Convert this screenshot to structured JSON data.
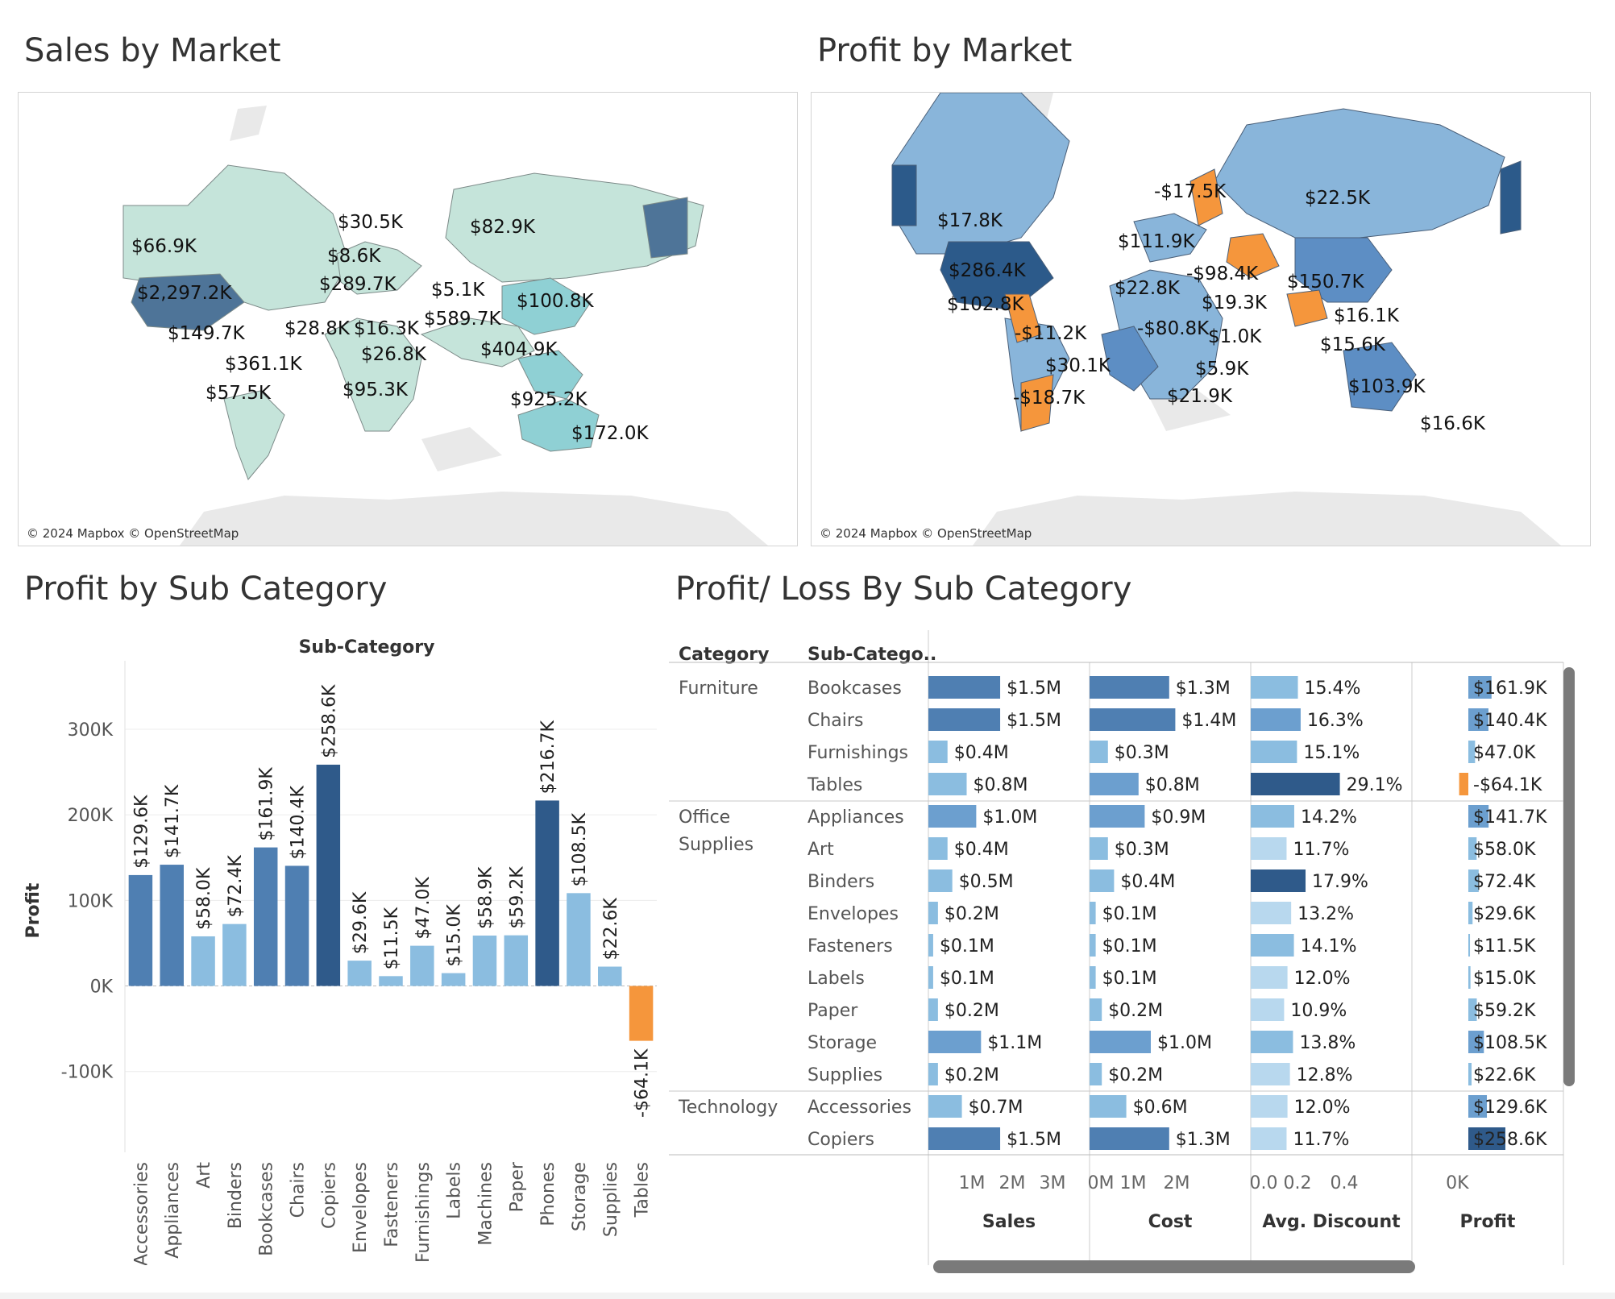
{
  "colors": {
    "map_land": "#e8e8e8",
    "sales_light": "#c5e4da",
    "sales_mid": "#8fd0d4",
    "sales_dark": "#4e7498",
    "profit_light": "#89b5da",
    "profit_mid": "#5d8ec4",
    "profit_dark": "#2c5a8a",
    "profit_neg": "#f5963c",
    "bar_very_light": "#b8d8ee",
    "bar_light": "#8bbde0",
    "bar_med": "#6c9fcf",
    "bar_dark": "#4f7fb2",
    "bar_darkest": "#2f5a8a",
    "bar_neg": "#f5963c"
  },
  "sales_map": {
    "title": "Sales by Market",
    "credit": "© 2024 Mapbox © OpenStreetMap",
    "labels": [
      "$30.5K",
      "$82.9K",
      "$66.9K",
      "$8.6K",
      "$289.7K",
      "$5.1K",
      "$2,297.2K",
      "$100.8K",
      "$589.7K",
      "$28.8K",
      "$16.3K",
      "$149.7K",
      "$26.8K",
      "$404.9K",
      "$361.1K",
      "$925.2K",
      "$57.5K",
      "$95.3K",
      "$172.0K"
    ]
  },
  "profit_map": {
    "title": "Profit by Market",
    "credit": "© 2024 Mapbox © OpenStreetMap",
    "labels": [
      "-$17.5K",
      "$22.5K",
      "$17.8K",
      "$111.9K",
      "$286.4K",
      "-$98.4K",
      "$150.7K",
      "$22.8K",
      "$19.3K",
      "$102.8K",
      "$16.1K",
      "-$80.8K",
      "$1.0K",
      "-$11.2K",
      "$15.6K",
      "$30.1K",
      "$5.9K",
      "$103.9K",
      "-$18.7K",
      "$21.9K",
      "$16.6K"
    ]
  },
  "subcat_chart": {
    "title": "Profit by Sub Category",
    "chart_data": {
      "type": "bar",
      "title": "Profit by Sub Category",
      "top_label": "Sub-Category",
      "xlabel": "",
      "ylabel": "Profit",
      "ylim": [
        -185000,
        380000
      ],
      "ticks": [
        -100000,
        0,
        100000,
        200000,
        300000
      ],
      "tick_labels": [
        "-100K",
        "0K",
        "100K",
        "200K",
        "300K"
      ],
      "categories": [
        "Accessories",
        "Appliances",
        "Art",
        "Binders",
        "Bookcases",
        "Chairs",
        "Copiers",
        "Envelopes",
        "Fasteners",
        "Furnishings",
        "Labels",
        "Machines",
        "Paper",
        "Phones",
        "Storage",
        "Supplies",
        "Tables"
      ],
      "values": [
        129600,
        141700,
        58000,
        72400,
        161900,
        140400,
        258600,
        29600,
        11500,
        47000,
        15000,
        58900,
        59200,
        216700,
        108500,
        22600,
        -64100
      ],
      "data_labels": [
        "$129.6K",
        "$141.7K",
        "$58.0K",
        "$72.4K",
        "$161.9K",
        "$140.4K",
        "$258.6K",
        "$29.6K",
        "$11.5K",
        "$47.0K",
        "$15.0K",
        "$58.9K",
        "$59.2K",
        "$216.7K",
        "$108.5K",
        "$22.6K",
        "-$64.1K"
      ]
    }
  },
  "pl_table": {
    "title": "Profit/ Loss By Sub Category",
    "headers": {
      "category": "Category",
      "subcategory": "Sub-Catego.."
    },
    "chart_data": {
      "type": "bar",
      "measures": [
        "Sales",
        "Cost",
        "Avg. Discount",
        "Profit"
      ],
      "axis_ticks": {
        "Sales": [
          "1M",
          "2M",
          "3M"
        ],
        "Cost": [
          "0M",
          "1M",
          "2M"
        ],
        "Avg. Discount": [
          "0.0",
          "0.2",
          "0.4"
        ],
        "Profit": [
          "0K"
        ]
      },
      "groups": [
        {
          "category": "Furniture",
          "rows": [
            {
              "name": "Bookcases",
              "sales": 1.5,
              "sales_label": "$1.5M",
              "cost": 1.3,
              "cost_label": "$1.3M",
              "discount": 0.154,
              "discount_label": "15.4%",
              "profit": 161900,
              "profit_label": "$161.9K"
            },
            {
              "name": "Chairs",
              "sales": 1.5,
              "sales_label": "$1.5M",
              "cost": 1.4,
              "cost_label": "$1.4M",
              "discount": 0.163,
              "discount_label": "16.3%",
              "profit": 140400,
              "profit_label": "$140.4K"
            },
            {
              "name": "Furnishings",
              "sales": 0.4,
              "sales_label": "$0.4M",
              "cost": 0.3,
              "cost_label": "$0.3M",
              "discount": 0.151,
              "discount_label": "15.1%",
              "profit": 47000,
              "profit_label": "$47.0K"
            },
            {
              "name": "Tables",
              "sales": 0.8,
              "sales_label": "$0.8M",
              "cost": 0.8,
              "cost_label": "$0.8M",
              "discount": 0.291,
              "discount_label": "29.1%",
              "profit": -64100,
              "profit_label": "-$64.1K"
            }
          ]
        },
        {
          "category": "Office Supplies",
          "rows": [
            {
              "name": "Appliances",
              "sales": 1.0,
              "sales_label": "$1.0M",
              "cost": 0.9,
              "cost_label": "$0.9M",
              "discount": 0.142,
              "discount_label": "14.2%",
              "profit": 141700,
              "profit_label": "$141.7K"
            },
            {
              "name": "Art",
              "sales": 0.4,
              "sales_label": "$0.4M",
              "cost": 0.3,
              "cost_label": "$0.3M",
              "discount": 0.117,
              "discount_label": "11.7%",
              "profit": 58000,
              "profit_label": "$58.0K"
            },
            {
              "name": "Binders",
              "sales": 0.5,
              "sales_label": "$0.5M",
              "cost": 0.4,
              "cost_label": "$0.4M",
              "discount": 0.179,
              "discount_label": "17.9%",
              "profit": 72400,
              "profit_label": "$72.4K"
            },
            {
              "name": "Envelopes",
              "sales": 0.2,
              "sales_label": "$0.2M",
              "cost": 0.1,
              "cost_label": "$0.1M",
              "discount": 0.132,
              "discount_label": "13.2%",
              "profit": 29600,
              "profit_label": "$29.6K"
            },
            {
              "name": "Fasteners",
              "sales": 0.1,
              "sales_label": "$0.1M",
              "cost": 0.1,
              "cost_label": "$0.1M",
              "discount": 0.141,
              "discount_label": "14.1%",
              "profit": 11500,
              "profit_label": "$11.5K"
            },
            {
              "name": "Labels",
              "sales": 0.1,
              "sales_label": "$0.1M",
              "cost": 0.1,
              "cost_label": "$0.1M",
              "discount": 0.12,
              "discount_label": "12.0%",
              "profit": 15000,
              "profit_label": "$15.0K"
            },
            {
              "name": "Paper",
              "sales": 0.2,
              "sales_label": "$0.2M",
              "cost": 0.2,
              "cost_label": "$0.2M",
              "discount": 0.109,
              "discount_label": "10.9%",
              "profit": 59200,
              "profit_label": "$59.2K"
            },
            {
              "name": "Storage",
              "sales": 1.1,
              "sales_label": "$1.1M",
              "cost": 1.0,
              "cost_label": "$1.0M",
              "discount": 0.138,
              "discount_label": "13.8%",
              "profit": 108500,
              "profit_label": "$108.5K"
            },
            {
              "name": "Supplies",
              "sales": 0.2,
              "sales_label": "$0.2M",
              "cost": 0.2,
              "cost_label": "$0.2M",
              "discount": 0.128,
              "discount_label": "12.8%",
              "profit": 22600,
              "profit_label": "$22.6K"
            }
          ]
        },
        {
          "category": "Technology",
          "rows": [
            {
              "name": "Accessories",
              "sales": 0.7,
              "sales_label": "$0.7M",
              "cost": 0.6,
              "cost_label": "$0.6M",
              "discount": 0.12,
              "discount_label": "12.0%",
              "profit": 129600,
              "profit_label": "$129.6K"
            },
            {
              "name": "Copiers",
              "sales": 1.5,
              "sales_label": "$1.5M",
              "cost": 1.3,
              "cost_label": "$1.3M",
              "discount": 0.117,
              "discount_label": "11.7%",
              "profit": 258600,
              "profit_label": "$258.6K"
            }
          ]
        }
      ]
    }
  }
}
